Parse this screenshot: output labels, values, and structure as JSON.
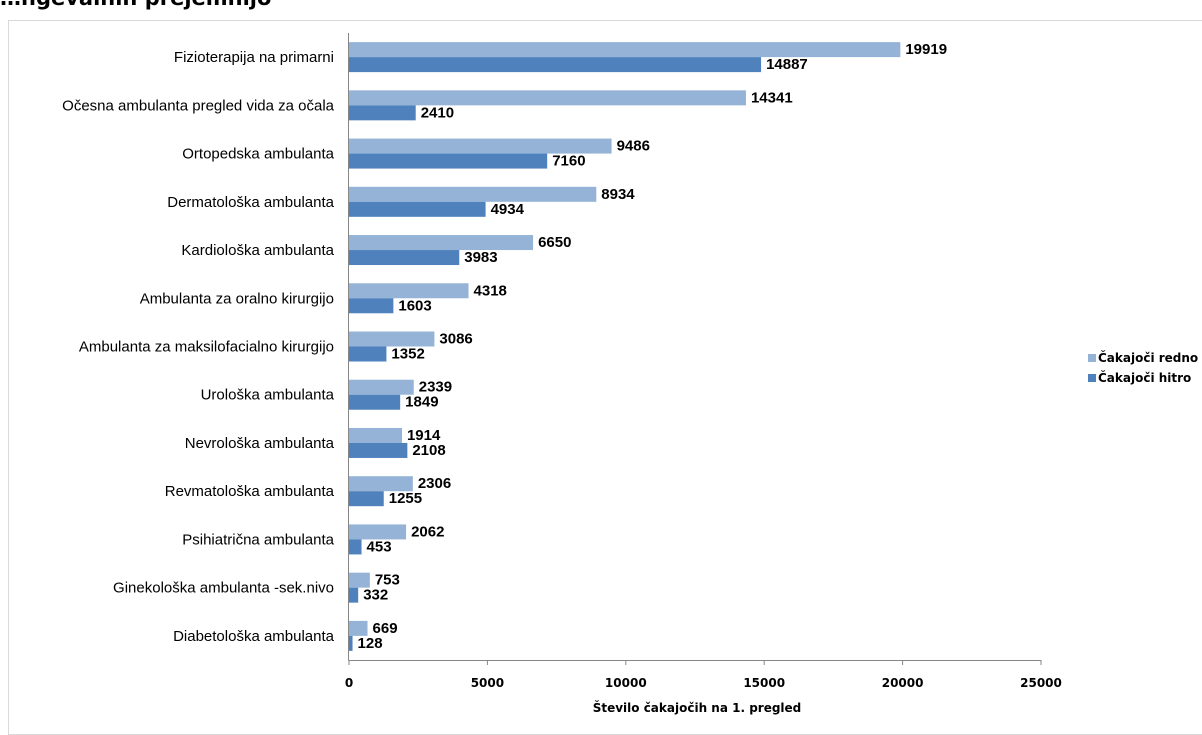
{
  "chart_data": {
    "type": "bar",
    "orientation": "horizontal",
    "title": "…ngevalnih prejemnijo",
    "xlabel": "Število čakajočih na 1. pregled",
    "ylabel": "",
    "xlim": [
      0,
      25000
    ],
    "x_ticks": [
      "0",
      "5000",
      "10000",
      "15000",
      "20000",
      "25000"
    ],
    "grid": false,
    "legend_position": "right",
    "categories": [
      "Fizioterapija na primarni",
      "Očesna ambulanta  pregled vida za očala",
      "Ortopedska ambulanta",
      "Dermatološka ambulanta",
      "Kardiološka ambulanta",
      "Ambulanta za oralno kirurgijo",
      "Ambulanta za maksilofacialno kirurgijo",
      "Urološka ambulanta",
      "Nevrološka ambulanta",
      "Revmatološka ambulanta",
      "Psihiatrična ambulanta",
      "Ginekološka ambulanta -sek.nivo",
      "Diabetološka ambulanta"
    ],
    "series": [
      {
        "name": "Čakajoči redno",
        "color": "#95b3d7",
        "values": [
          19919,
          14341,
          9486,
          8934,
          6650,
          4318,
          3086,
          2339,
          1914,
          2306,
          2062,
          753,
          669
        ]
      },
      {
        "name": "Čakajoči hitro",
        "color": "#4f81bd",
        "values": [
          14887,
          2410,
          7160,
          4934,
          3983,
          1603,
          1352,
          1849,
          2108,
          1255,
          453,
          332,
          128
        ]
      }
    ]
  }
}
